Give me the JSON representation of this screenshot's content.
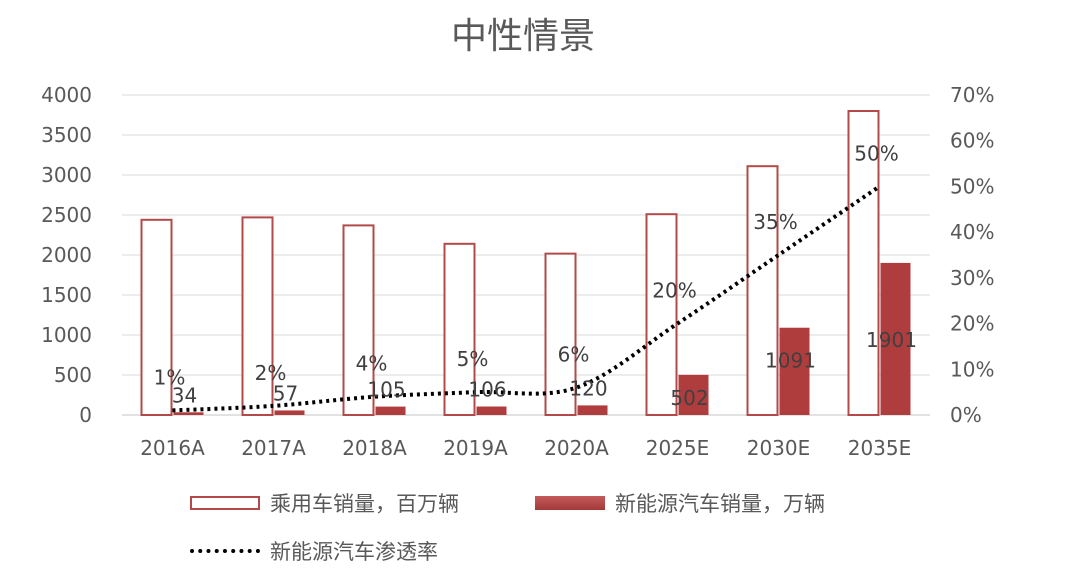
{
  "chart_data": {
    "type": "bar",
    "title": "中性情景",
    "categories": [
      "2016A",
      "2017A",
      "2018A",
      "2019A",
      "2020A",
      "2025E",
      "2030E",
      "2035E"
    ],
    "left_axis": {
      "min": 0,
      "max": 4000,
      "ticks": [
        "0",
        "500",
        "1000",
        "1500",
        "2000",
        "2500",
        "3000",
        "3500",
        "4000"
      ]
    },
    "right_axis": {
      "min": 0,
      "max": 70,
      "ticks": [
        "0%",
        "10%",
        "20%",
        "30%",
        "40%",
        "50%",
        "60%",
        "70%"
      ]
    },
    "series": [
      {
        "name": "乘用车销量，百万辆",
        "type": "bar",
        "style": "outline",
        "axis": "left",
        "values": [
          2440,
          2470,
          2370,
          2140,
          2017,
          2510,
          3110,
          3800
        ]
      },
      {
        "name": "新能源汽车销量，万辆",
        "type": "bar",
        "style": "filled",
        "axis": "left",
        "values": [
          34,
          57,
          105,
          106,
          120,
          502,
          1091,
          1901
        ],
        "labels": [
          "34",
          "57",
          "105",
          "106",
          "120",
          "502",
          "1091",
          "1901"
        ]
      },
      {
        "name": "新能源汽车渗透率",
        "type": "line",
        "style": "dotted",
        "axis": "right",
        "values": [
          1,
          2,
          4,
          5,
          6,
          20,
          35,
          50
        ],
        "labels": [
          "1%",
          "2%",
          "4%",
          "5%",
          "6%",
          "20%",
          "35%",
          "50%"
        ]
      }
    ],
    "grid": true,
    "legend_position": "bottom"
  },
  "colors": {
    "outline_bar": "#b24a4a",
    "filled_bar": "#b03d3d",
    "grid": "#d9d9d9",
    "text": "#595959",
    "line": "#000000"
  }
}
